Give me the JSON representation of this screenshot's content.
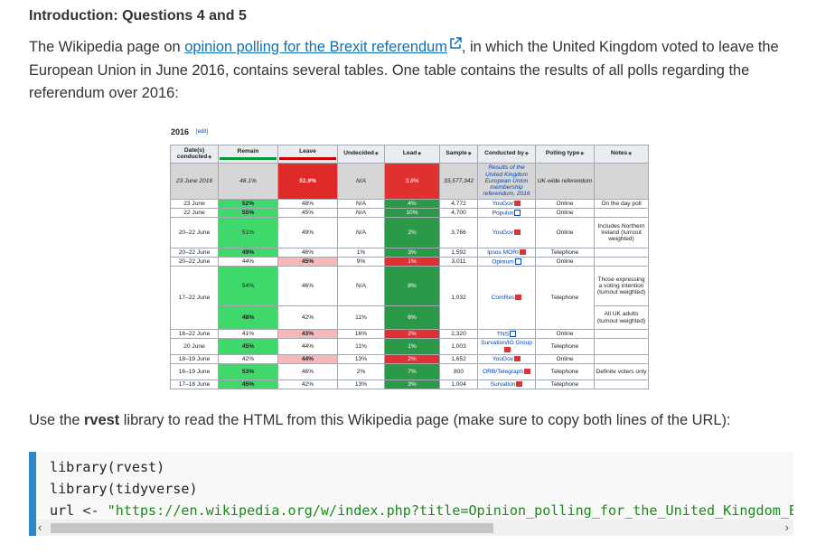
{
  "heading": "Introduction: Questions 4 and 5",
  "intro": {
    "pre": "The Wikipedia page on ",
    "link": "opinion polling for the Brexit referendum",
    "post": ", in which the United Kingdom voted to leave the European Union in June 2016, contains several tables. One table contains the results of all polls regarding the referendum over 2016:"
  },
  "wiki": {
    "title": "2016",
    "edit": "[edit]",
    "headers": [
      "Date(s) conducted",
      "Remain",
      "Leave",
      "Undecided",
      "Lead",
      "Sample",
      "Conducted by",
      "Polling type",
      "Notes"
    ],
    "rows": [
      {
        "date": "23 June 2016",
        "remain": "48.1%",
        "leave": "51.9%",
        "und": "N/A",
        "lead": "3.8%",
        "sample": "33,577,342",
        "by": "Results of the United Kingdom European Union membership referendum, 2016",
        "type": "UK-wide referendum",
        "notes": ""
      },
      {
        "date": "23 June",
        "remain": "52%",
        "leave": "48%",
        "und": "N/A",
        "lead": "4%",
        "sample": "4,772",
        "by": "YouGov",
        "type": "Online",
        "notes": "On the day poll"
      },
      {
        "date": "22 June",
        "remain": "55%",
        "leave": "45%",
        "und": "N/A",
        "lead": "10%",
        "sample": "4,700",
        "by": "Populus",
        "type": "Online",
        "notes": ""
      },
      {
        "date": "20–22 June",
        "remain": "51%",
        "leave": "49%",
        "und": "N/A",
        "lead": "2%",
        "sample": "3,766",
        "by": "YouGov",
        "type": "Online",
        "notes": "Includes Northern Ireland (turnout weighted)"
      },
      {
        "date": "20–22 June",
        "remain": "49%",
        "leave": "46%",
        "und": "1%",
        "lead": "3%",
        "sample": "1,592",
        "by": "Ipsos MORI",
        "type": "Telephone",
        "notes": ""
      },
      {
        "date": "20–22 June",
        "remain": "44%",
        "leave": "45%",
        "und": "9%",
        "lead": "1%",
        "sample": "3,011",
        "by": "Opinium",
        "type": "Online",
        "notes": ""
      },
      {
        "date": "17–22 June",
        "remain": "54%",
        "leave": "46%",
        "und": "N/A",
        "lead": "8%",
        "sample": "1,032",
        "by": "ComRes",
        "type": "Telephone",
        "notes": "Those expressing a voting intention (turnout weighted)"
      },
      {
        "remain": "48%",
        "leave": "42%",
        "und": "11%",
        "lead": "6%",
        "notes": "All UK adults (turnout weighted)"
      },
      {
        "date": "16–22 June",
        "remain": "41%",
        "leave": "43%",
        "und": "16%",
        "lead": "2%",
        "sample": "2,320",
        "by": "TNS",
        "type": "Online",
        "notes": ""
      },
      {
        "date": "20 June",
        "remain": "45%",
        "leave": "44%",
        "und": "11%",
        "lead": "1%",
        "sample": "1,003",
        "by": "Survation/IG Group",
        "type": "Telephone",
        "notes": ""
      },
      {
        "date": "18–19 June",
        "remain": "42%",
        "leave": "44%",
        "und": "13%",
        "lead": "2%",
        "sample": "1,652",
        "by": "YouGov",
        "type": "Online",
        "notes": ""
      },
      {
        "date": "16–19 June",
        "remain": "53%",
        "leave": "46%",
        "und": "2%",
        "lead": "7%",
        "sample": "800",
        "by": "ORB/Telegraph",
        "type": "Telephone",
        "notes": "Definite voters only"
      },
      {
        "date": "17–18 June",
        "remain": "45%",
        "leave": "42%",
        "und": "13%",
        "lead": "3%",
        "sample": "1,004",
        "by": "Survation",
        "type": "Telephone",
        "notes": ""
      }
    ]
  },
  "instruction": {
    "pre": "Use the ",
    "bold": "rvest",
    "post": " library to read the HTML from this Wikipedia page (make sure to copy both lines of the URL):"
  },
  "code": {
    "line1": "library(rvest)",
    "line2": "library(tidyverse)",
    "line3_var": "url",
    "line3_op": " <- ",
    "line3_str": "\"https://en.wikipedia.org/w/index.php?title=Opinion_polling_for_the_United_Kingdom_Eur"
  },
  "scroll": {
    "left": "‹",
    "right": "›"
  },
  "colors": {
    "link": "#0d6fb8",
    "accent_bar": "#2f86c8",
    "remain": "#009933",
    "leave": "#cc0000"
  }
}
